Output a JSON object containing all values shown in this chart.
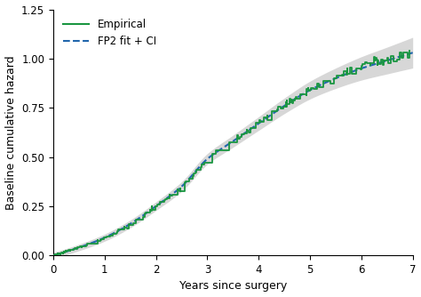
{
  "title": "",
  "xlabel": "Years since surgery",
  "ylabel": "Baseline cumulative hazard",
  "xlim": [
    0,
    7
  ],
  "ylim": [
    0,
    1.25
  ],
  "xticks": [
    0,
    1,
    2,
    3,
    4,
    5,
    6,
    7
  ],
  "yticks": [
    0.0,
    0.25,
    0.5,
    0.75,
    1.0,
    1.25
  ],
  "empirical_color": "#1a9641",
  "fp2_color": "#2166ac",
  "ci_color": "#b0b0b0",
  "ci_alpha": 0.5,
  "legend_empirical": "Empirical",
  "legend_fp2": "FP2 fit + CI",
  "fp2_linestyle": "--",
  "empirical_linewidth": 1.3,
  "fp2_linewidth": 1.5,
  "figsize": [
    4.74,
    3.34
  ],
  "dpi": 100,
  "key_points_x": [
    0,
    0.5,
    1,
    1.5,
    2,
    2.5,
    3,
    3.5,
    4,
    4.5,
    5,
    5.5,
    6,
    6.5,
    7
  ],
  "key_points_y": [
    0,
    0.04,
    0.09,
    0.16,
    0.25,
    0.35,
    0.49,
    0.58,
    0.67,
    0.76,
    0.84,
    0.9,
    0.95,
    0.99,
    1.03
  ]
}
